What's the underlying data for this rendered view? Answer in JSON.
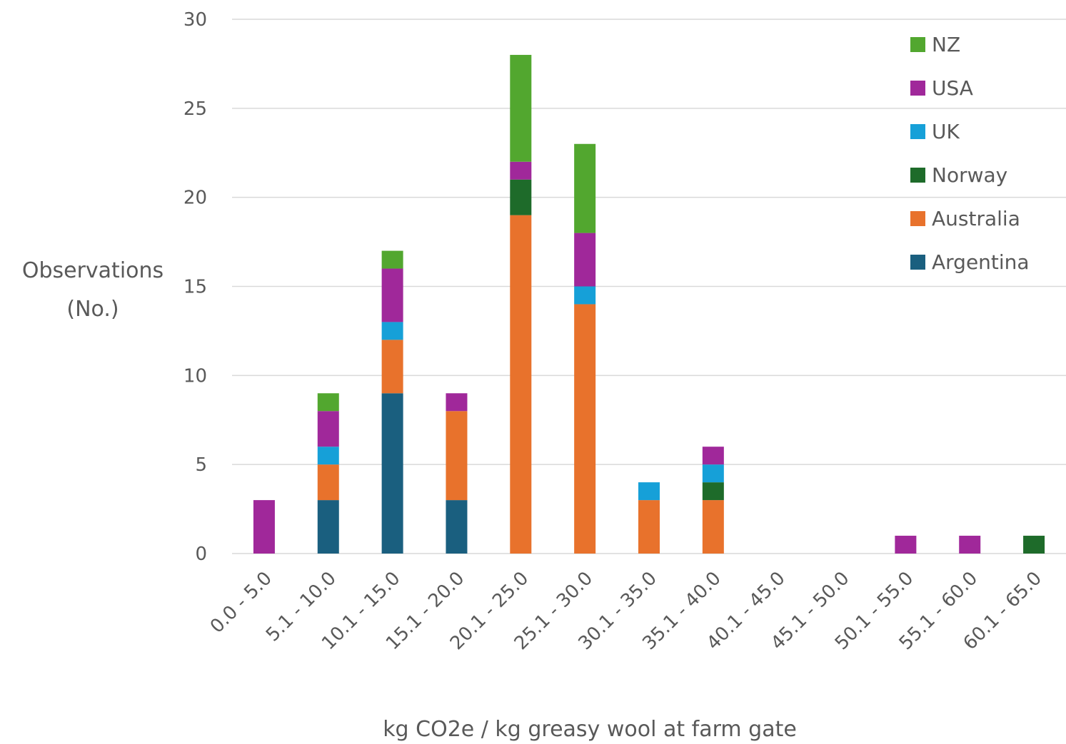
{
  "chart_data": {
    "type": "bar",
    "stacked": true,
    "title": "",
    "xlabel": "kg CO2e / kg greasy wool at farm gate",
    "ylabel_lines": [
      "Observations",
      "(No.)"
    ],
    "ylim": [
      0,
      30
    ],
    "yticks": [
      0,
      5,
      10,
      15,
      20,
      25,
      30
    ],
    "grid": true,
    "legend_position": "top-right",
    "categories": [
      "0.0 - 5.0",
      "5.1 - 10.0",
      "10.1 - 15.0",
      "15.1 - 20.0",
      "20.1 - 25.0",
      "25.1 - 30.0",
      "30.1 - 35.0",
      "35.1 - 40.0",
      "40.1 - 45.0",
      "45.1 - 50.0",
      "50.1 - 55.0",
      "55.1 - 60.0",
      "60.1 - 65.0"
    ],
    "series": [
      {
        "name": "Argentina",
        "color": "#1a5f7f",
        "values": [
          0,
          3,
          9,
          3,
          0,
          0,
          0,
          0,
          0,
          0,
          0,
          0,
          0
        ]
      },
      {
        "name": "Australia",
        "color": "#e8722c",
        "values": [
          0,
          2,
          3,
          5,
          19,
          14,
          3,
          3,
          0,
          0,
          0,
          0,
          0
        ]
      },
      {
        "name": "Norway",
        "color": "#1e6b2a",
        "values": [
          0,
          0,
          0,
          0,
          2,
          0,
          0,
          1,
          0,
          0,
          0,
          0,
          1
        ]
      },
      {
        "name": "UK",
        "color": "#16a0d8",
        "values": [
          0,
          1,
          1,
          0,
          0,
          1,
          1,
          1,
          0,
          0,
          0,
          0,
          0
        ]
      },
      {
        "name": "USA",
        "color": "#a0289a",
        "values": [
          3,
          2,
          3,
          1,
          1,
          3,
          0,
          1,
          0,
          0,
          1,
          1,
          0
        ]
      },
      {
        "name": "NZ",
        "color": "#52a72f",
        "values": [
          0,
          1,
          1,
          0,
          6,
          5,
          0,
          0,
          0,
          0,
          0,
          0,
          0
        ]
      }
    ],
    "legend_order": [
      "NZ",
      "USA",
      "UK",
      "Norway",
      "Australia",
      "Argentina"
    ]
  }
}
